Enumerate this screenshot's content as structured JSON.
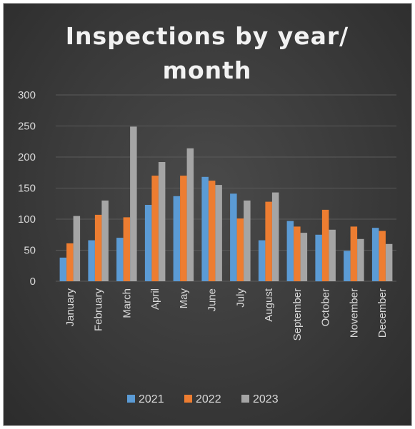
{
  "chart_data": {
    "type": "bar",
    "title_lines": [
      "Inspections by year/",
      "month"
    ],
    "categories": [
      "January",
      "February",
      "March",
      "April",
      "May",
      "June",
      "July",
      "August",
      "September",
      "October",
      "November",
      "December"
    ],
    "series": [
      {
        "name": "2021",
        "color": "#5b9bd5",
        "values": [
          38,
          66,
          70,
          123,
          137,
          168,
          141,
          66,
          97,
          75,
          49,
          86
        ]
      },
      {
        "name": "2022",
        "color": "#ed7d31",
        "values": [
          61,
          107,
          103,
          170,
          170,
          162,
          101,
          128,
          88,
          115,
          88,
          81
        ]
      },
      {
        "name": "2023",
        "color": "#a5a5a5",
        "values": [
          105,
          130,
          249,
          192,
          214,
          155,
          130,
          143,
          78,
          83,
          68,
          60
        ]
      }
    ],
    "ylim": [
      0,
      300
    ],
    "yticks": [
      0,
      50,
      100,
      150,
      200,
      250,
      300
    ],
    "grid": true,
    "legend_position": "bottom"
  }
}
